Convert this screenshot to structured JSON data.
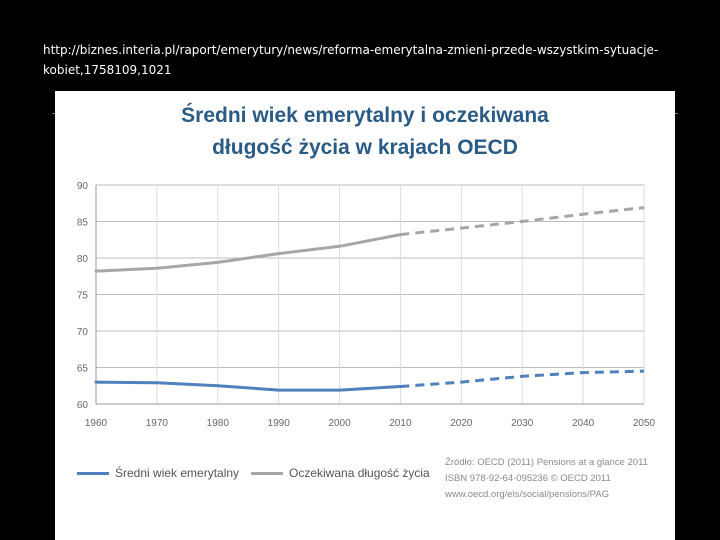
{
  "slide": {
    "url_text": "http://biznes.interia.pl/raport/emerytury/news/reforma-emerytalna-zmieni-przede-wszystkim-sytuacje-kobiet,1758109,1021"
  },
  "chart_data": {
    "type": "line",
    "title_line1": "Średni wiek emerytalny i oczekiwana",
    "title_line2": "długość życia w krajach OECD",
    "xlim": [
      1960,
      2050
    ],
    "ylim": [
      60,
      90
    ],
    "x_ticks": [
      "1960",
      "1970",
      "1980",
      "1990",
      "2000",
      "2010",
      "2020",
      "2030",
      "2040",
      "2050"
    ],
    "y_ticks": [
      "60",
      "65",
      "70",
      "75",
      "80",
      "85",
      "90"
    ],
    "grid": true,
    "legend_position": "bottom",
    "forecast_from": 2010,
    "series": [
      {
        "name": "Średni wiek emerytalny",
        "color": "#4f81bd",
        "x": [
          1960,
          1970,
          1980,
          1990,
          2000,
          2010,
          2020,
          2030,
          2040,
          2050
        ],
        "y": [
          63.0,
          62.9,
          62.5,
          61.9,
          61.9,
          62.4,
          63.0,
          63.8,
          64.3,
          64.5
        ]
      },
      {
        "name": "Oczekiwana długość życia",
        "color": "#a6a6a6",
        "x": [
          1960,
          1970,
          1980,
          1990,
          2000,
          2010,
          2020,
          2030,
          2040,
          2050
        ],
        "y": [
          78.2,
          78.6,
          79.4,
          80.6,
          81.6,
          83.2,
          84.1,
          85.0,
          86.0,
          86.9
        ]
      }
    ],
    "source_lines": [
      "Źródło: OECD (2011) Pensions at a glance 2011",
      "ISBN 978-92-64-095236 © OECD 2011",
      "www.oecd.org/els/social/pensions/PAG"
    ]
  }
}
